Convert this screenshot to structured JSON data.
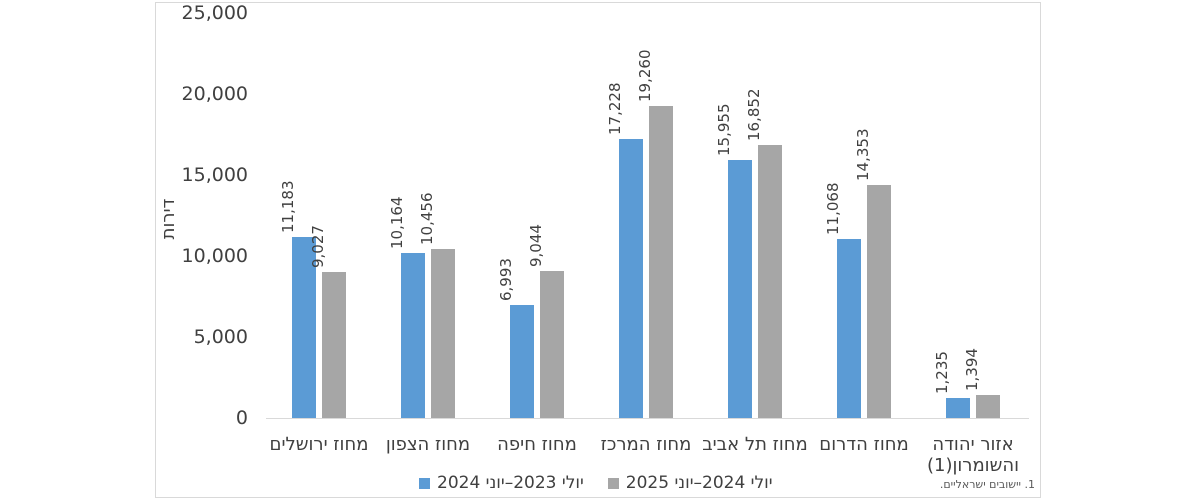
{
  "chart": {
    "y_axis_title": "דירות",
    "footnote": "1. יישובים ישראליים."
  },
  "chart_data": {
    "type": "bar",
    "title": "",
    "xlabel": "",
    "ylabel": "דירות",
    "categories": [
      "מחוז ירושלים",
      "מחוז הצפון",
      "מחוז חיפה",
      "מחוז המרכז",
      "מחוז תל אביב",
      "מחוז הדרום",
      "אזור יהודה והשומרון(1)"
    ],
    "series": [
      {
        "name": "יולי 2023–יוני 2024",
        "color": "#5B9BD5",
        "values": [
          11183,
          10164,
          6993,
          17228,
          15955,
          11068,
          1235
        ]
      },
      {
        "name": "יולי 2024–יוני 2025",
        "color": "#A6A6A6",
        "values": [
          9027,
          10456,
          9044,
          19260,
          16852,
          14353,
          1394
        ]
      }
    ],
    "ylim": [
      0,
      25000
    ],
    "y_tick_step": 5000,
    "y_tick_labels": [
      "0",
      "5,000",
      "10,000",
      "15,000",
      "20,000",
      "25,000"
    ],
    "grid": false,
    "legend_position": "bottom",
    "data_labels": "rotated-vertical",
    "footnote": "1. יישובים ישראליים."
  }
}
